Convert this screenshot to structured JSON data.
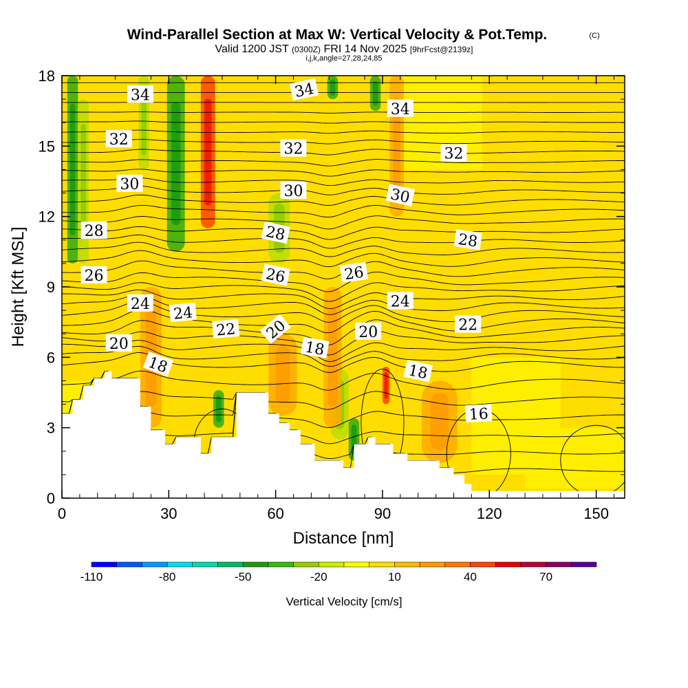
{
  "chart_data": {
    "type": "contour",
    "title": "Wind-Parallel Section at Max W: Vertical Velocity & Pot.Temp.",
    "copyright": "(C)",
    "subtitle": {
      "valid": "Valid 1200 JST",
      "utc": "(0300Z)",
      "date": "FRI 14 Nov 2025",
      "forecast": "[9hrFcst@2139z]"
    },
    "indices": "i,j,k,angle=27,28,24,85",
    "xlabel": "Distance [nm]",
    "ylabel": "Height [Kft MSL]",
    "xlim": [
      0,
      158
    ],
    "ylim": [
      0,
      18
    ],
    "x_ticks": [
      0,
      30,
      60,
      90,
      120,
      150
    ],
    "y_ticks": [
      0,
      3,
      6,
      9,
      12,
      15,
      18
    ],
    "terrain": {
      "x": [
        0,
        3,
        3,
        6,
        6,
        9,
        9,
        12,
        12,
        14,
        14,
        22,
        22,
        25,
        25,
        29,
        29,
        32,
        32,
        39,
        39,
        42,
        42,
        49,
        49,
        58,
        58,
        61,
        61,
        64,
        64,
        67,
        67,
        71,
        71,
        79,
        79,
        82,
        82,
        86,
        86,
        88,
        88,
        93,
        93,
        97,
        97,
        106,
        106,
        110,
        110,
        113,
        113,
        115,
        115,
        120,
        120,
        158
      ],
      "height": [
        3.6,
        3.6,
        4.2,
        4.2,
        4.8,
        4.8,
        5.1,
        5.1,
        5.4,
        5.4,
        5.1,
        5.1,
        3.9,
        3.9,
        2.9,
        2.9,
        2.3,
        2.3,
        2.6,
        2.6,
        1.9,
        1.9,
        2.6,
        2.6,
        4.5,
        4.5,
        3.6,
        3.6,
        3.2,
        3.2,
        2.9,
        2.9,
        2.3,
        2.3,
        1.6,
        1.6,
        1.3,
        1.3,
        2.3,
        2.3,
        2.6,
        2.6,
        2.3,
        2.3,
        1.9,
        1.9,
        1.6,
        1.6,
        1.3,
        1.3,
        1.0,
        1.0,
        0.6,
        0.6,
        0.3,
        0.3,
        0.3,
        0.3
      ]
    },
    "contour_labels": [
      {
        "text": "34",
        "x": 22,
        "y": 17.2,
        "angle": 0
      },
      {
        "text": "34",
        "x": 68,
        "y": 17.4,
        "angle": -12
      },
      {
        "text": "34",
        "x": 95,
        "y": 16.6,
        "angle": 0
      },
      {
        "text": "32",
        "x": 16,
        "y": 15.3,
        "angle": 0
      },
      {
        "text": "32",
        "x": 65,
        "y": 14.9,
        "angle": 0
      },
      {
        "text": "32",
        "x": 110,
        "y": 14.7,
        "angle": 0
      },
      {
        "text": "30",
        "x": 19,
        "y": 13.4,
        "angle": 0
      },
      {
        "text": "30",
        "x": 65,
        "y": 13.1,
        "angle": 0
      },
      {
        "text": "30",
        "x": 95,
        "y": 12.9,
        "angle": 12
      },
      {
        "text": "28",
        "x": 9,
        "y": 11.4,
        "angle": 0
      },
      {
        "text": "28",
        "x": 60,
        "y": 11.3,
        "angle": 12
      },
      {
        "text": "28",
        "x": 114,
        "y": 11.0,
        "angle": 8
      },
      {
        "text": "26",
        "x": 9,
        "y": 9.5,
        "angle": 0
      },
      {
        "text": "26",
        "x": 60,
        "y": 9.5,
        "angle": 12
      },
      {
        "text": "26",
        "x": 82,
        "y": 9.6,
        "angle": -8
      },
      {
        "text": "24",
        "x": 22,
        "y": 8.3,
        "angle": 0
      },
      {
        "text": "24",
        "x": 34,
        "y": 7.9,
        "angle": -5
      },
      {
        "text": "24",
        "x": 95,
        "y": 8.4,
        "angle": 0
      },
      {
        "text": "22",
        "x": 46,
        "y": 7.2,
        "angle": -5
      },
      {
        "text": "22",
        "x": 114,
        "y": 7.4,
        "angle": 0
      },
      {
        "text": "20",
        "x": 16,
        "y": 6.6,
        "angle": 0
      },
      {
        "text": "20",
        "x": 60,
        "y": 7.2,
        "angle": -40
      },
      {
        "text": "20",
        "x": 86,
        "y": 7.1,
        "angle": 0
      },
      {
        "text": "18",
        "x": 27,
        "y": 5.7,
        "angle": 20
      },
      {
        "text": "18",
        "x": 71,
        "y": 6.4,
        "angle": 10
      },
      {
        "text": "18",
        "x": 100,
        "y": 5.4,
        "angle": 12
      },
      {
        "text": "16",
        "x": 117,
        "y": 3.6,
        "angle": -3
      }
    ],
    "colorbar": {
      "title": "Vertical Velocity [cm/s]",
      "min": -110,
      "max": 90,
      "step": 10,
      "tick_labels": [
        -110,
        -80,
        -50,
        -20,
        10,
        40,
        70
      ],
      "colors": [
        "#0000ff",
        "#0055ff",
        "#0099ff",
        "#00ddee",
        "#00ddaa",
        "#00bb66",
        "#229911",
        "#33bb11",
        "#99cc00",
        "#ccee00",
        "#ffff00",
        "#ffdd00",
        "#ffbb00",
        "#ff9900",
        "#ff7700",
        "#ff4400",
        "#ee0000",
        "#bb0033",
        "#880066",
        "#550099"
      ]
    },
    "w_features": [
      {
        "kind": "green",
        "x": 3,
        "y_from": 10,
        "y_to": 18,
        "width": 3
      },
      {
        "kind": "green",
        "x": 32,
        "y_from": 10.5,
        "y_to": 18,
        "width": 5
      },
      {
        "kind": "green",
        "x": 76,
        "y_from": 17,
        "y_to": 18,
        "width": 3
      },
      {
        "kind": "green",
        "x": 88,
        "y_from": 16.5,
        "y_to": 18,
        "width": 3
      },
      {
        "kind": "green",
        "x": 44,
        "y_from": 3.0,
        "y_to": 4.6,
        "width": 3
      },
      {
        "kind": "green",
        "x": 82,
        "y_from": 1.6,
        "y_to": 3.4,
        "width": 3
      },
      {
        "kind": "lime",
        "x": 6,
        "y_from": 10,
        "y_to": 17,
        "width": 3
      },
      {
        "kind": "lime",
        "x": 23,
        "y_from": 14,
        "y_to": 18,
        "width": 3
      },
      {
        "kind": "lime",
        "x": 78,
        "y_from": 2.5,
        "y_to": 5.5,
        "width": 5
      },
      {
        "kind": "lime",
        "x": 61,
        "y_from": 10,
        "y_to": 13,
        "width": 6
      },
      {
        "kind": "red",
        "x": 41,
        "y_from": 11.5,
        "y_to": 18,
        "width": 4
      },
      {
        "kind": "red",
        "x": 91,
        "y_from": 4.0,
        "y_to": 5.6,
        "width": 2
      },
      {
        "kind": "orange",
        "x": 76,
        "y_from": 3,
        "y_to": 9,
        "width": 5
      },
      {
        "kind": "orange",
        "x": 62,
        "y_from": 3.5,
        "y_to": 7,
        "width": 8
      },
      {
        "kind": "orange",
        "x": 25,
        "y_from": 3,
        "y_to": 9,
        "width": 6
      },
      {
        "kind": "orange",
        "x": 106,
        "y_from": 1.5,
        "y_to": 5,
        "width": 10
      },
      {
        "kind": "orange",
        "x": 94,
        "y_from": 12,
        "y_to": 18,
        "width": 4
      }
    ]
  }
}
